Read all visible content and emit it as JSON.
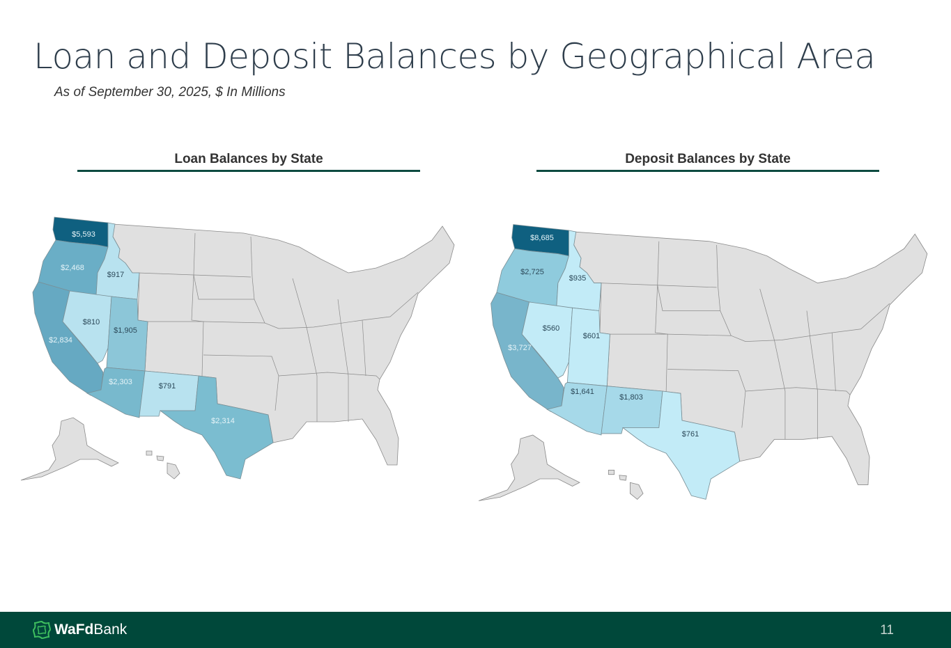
{
  "header": {
    "title": "Loan and Deposit Balances by Geographical Area",
    "subtitle": "As of September 30, 2025, $ In Millions"
  },
  "chart_data": [
    {
      "type": "choropleth",
      "title": "Loan Balances by State",
      "units": "$ In Millions",
      "states": [
        {
          "state": "WA",
          "label": "$5,593",
          "value": 5593,
          "color": "#0f6080"
        },
        {
          "state": "OR",
          "label": "$2,468",
          "value": 2468,
          "color": "#6aaec6"
        },
        {
          "state": "ID",
          "label": "$917",
          "value": 917,
          "color": "#b8e2ef"
        },
        {
          "state": "CA",
          "label": "$2,834",
          "value": 2834,
          "color": "#66a9c2"
        },
        {
          "state": "NV",
          "label": "$810",
          "value": 810,
          "color": "#b8e2ef"
        },
        {
          "state": "UT",
          "label": "$1,905",
          "value": 1905,
          "color": "#8cc6d8"
        },
        {
          "state": "AZ",
          "label": "$2,303",
          "value": 2303,
          "color": "#78b9cd"
        },
        {
          "state": "NM",
          "label": "$791",
          "value": 791,
          "color": "#b8e2ef"
        },
        {
          "state": "TX",
          "label": "$2,314",
          "value": 2314,
          "color": "#7bbdd0"
        }
      ]
    },
    {
      "type": "choropleth",
      "title": "Deposit Balances by State",
      "units": "$ In Millions",
      "states": [
        {
          "state": "WA",
          "label": "$8,685",
          "value": 8685,
          "color": "#0f6080"
        },
        {
          "state": "OR",
          "label": "$2,725",
          "value": 2725,
          "color": "#8fcbdd"
        },
        {
          "state": "ID",
          "label": "$935",
          "value": 935,
          "color": "#c2ebf7"
        },
        {
          "state": "CA",
          "label": "$3,727",
          "value": 3727,
          "color": "#78b5cb"
        },
        {
          "state": "NV",
          "label": "$560",
          "value": 560,
          "color": "#c2ebf7"
        },
        {
          "state": "UT",
          "label": "$601",
          "value": 601,
          "color": "#c2ebf7"
        },
        {
          "state": "AZ",
          "label": "$1,641",
          "value": 1641,
          "color": "#a6d9e9"
        },
        {
          "state": "NM",
          "label": "$1,803",
          "value": 1803,
          "color": "#a6d9e9"
        },
        {
          "state": "TX",
          "label": "$761",
          "value": 761,
          "color": "#c2ebf7"
        }
      ]
    }
  ],
  "colors": {
    "other_states": "#e0e0e0",
    "footer": "#00483a",
    "accent_line": "#0d4a40"
  },
  "footer": {
    "logo_bold": "WaFd",
    "logo_light": "Bank",
    "page_number": "11"
  }
}
